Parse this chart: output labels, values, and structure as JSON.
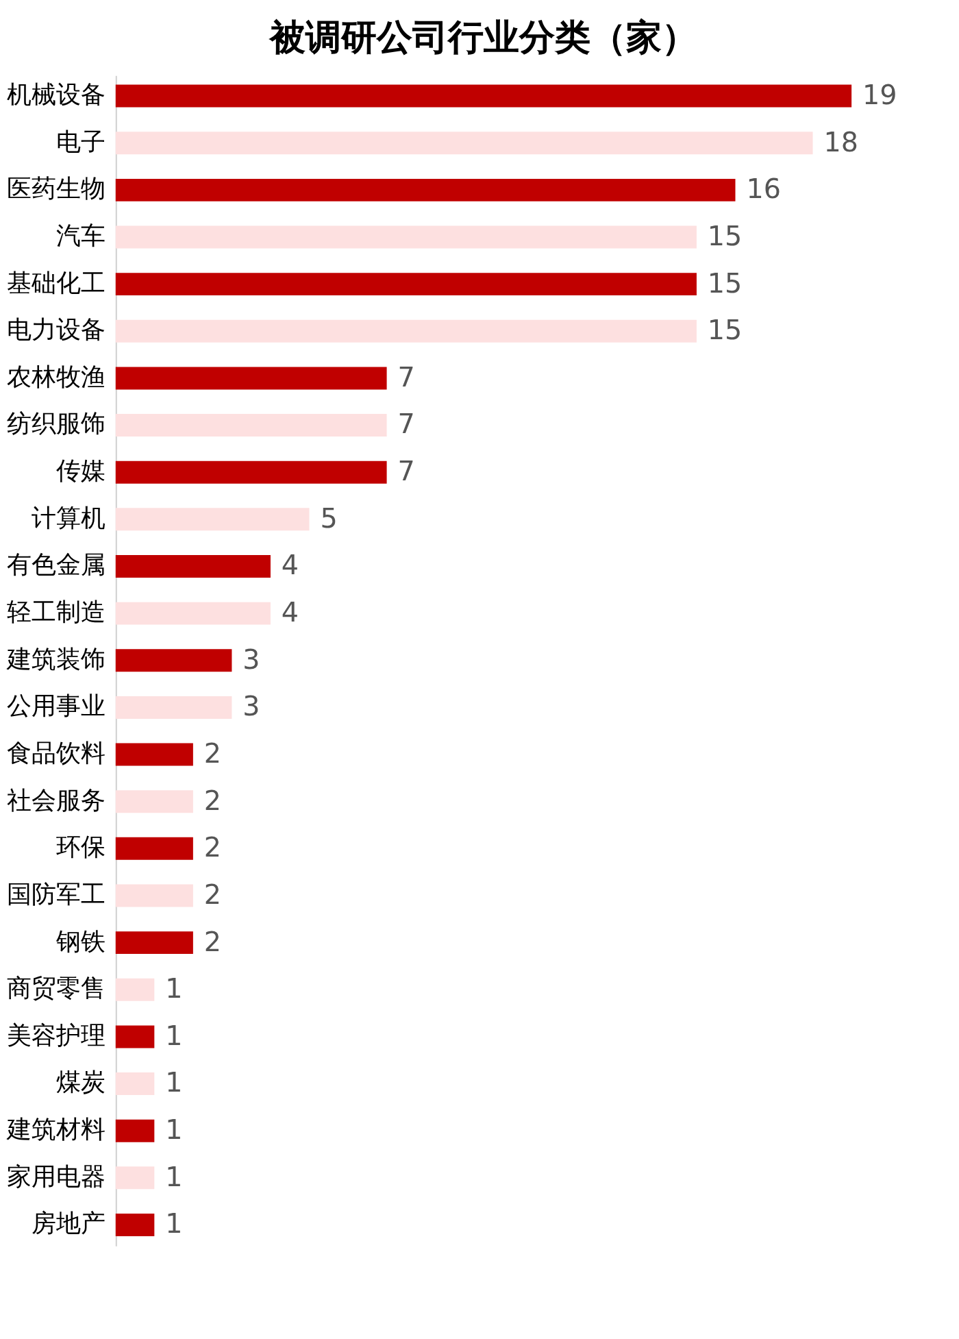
{
  "chart_data": {
    "type": "bar",
    "orientation": "horizontal",
    "title": "被调研公司行业分类（家）",
    "categories": [
      "机械设备",
      "电子",
      "医药生物",
      "汽车",
      "基础化工",
      "电力设备",
      "农林牧渔",
      "纺织服饰",
      "传媒",
      "计算机",
      "有色金属",
      "轻工制造",
      "建筑装饰",
      "公用事业",
      "食品饮料",
      "社会服务",
      "环保",
      "国防军工",
      "钢铁",
      "商贸零售",
      "美容护理",
      "煤炭",
      "建筑材料",
      "家用电器",
      "房地产"
    ],
    "values": [
      19,
      18,
      16,
      15,
      15,
      15,
      7,
      7,
      7,
      5,
      4,
      4,
      3,
      3,
      2,
      2,
      2,
      2,
      2,
      1,
      1,
      1,
      1,
      1,
      1
    ],
    "colors": [
      "#c00000",
      "#fde0e0",
      "#c00000",
      "#fde0e0",
      "#c00000",
      "#fde0e0",
      "#c00000",
      "#fde0e0",
      "#c00000",
      "#fde0e0",
      "#c00000",
      "#fde0e0",
      "#c00000",
      "#fde0e0",
      "#c00000",
      "#fde0e0",
      "#c00000",
      "#fde0e0",
      "#c00000",
      "#fde0e0",
      "#c00000",
      "#fde0e0",
      "#c00000",
      "#fde0e0",
      "#c00000"
    ],
    "data_labels": true,
    "legend": false
  }
}
